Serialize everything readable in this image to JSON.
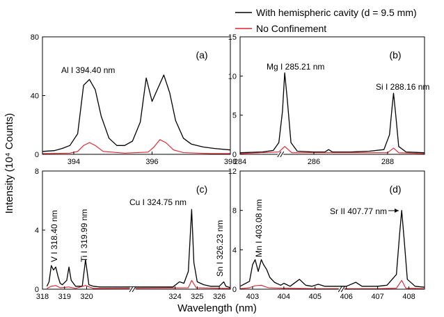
{
  "figure": {
    "ylabel": "Intensity (10⁴ Counts)",
    "xlabel": "Wavelength (nm)",
    "legend": [
      {
        "name": "With hemispheric cavity (d = 9.5 mm)",
        "color": "#000000"
      },
      {
        "name": "No Confinement",
        "color": "#e0202a"
      }
    ]
  },
  "chart_data": [
    {
      "type": "line",
      "panel": "(a)",
      "xlim": [
        393.2,
        398
      ],
      "ylim": [
        0,
        80
      ],
      "xticks": [
        394,
        396,
        398
      ],
      "yticks": [
        0,
        40,
        80
      ],
      "broken_x": false,
      "annotations": [
        {
          "text": "Al I 394.40 nm"
        }
      ],
      "series": [
        {
          "color": "#000000",
          "x": [
            393.2,
            393.5,
            393.7,
            393.9,
            394.1,
            394.25,
            394.4,
            394.55,
            394.7,
            394.9,
            395.1,
            395.3,
            395.5,
            395.7,
            395.85,
            396.0,
            396.15,
            396.3,
            396.45,
            396.6,
            396.8,
            397.0,
            397.3,
            397.6,
            398.0
          ],
          "y": [
            2,
            2.5,
            4,
            6,
            14,
            47,
            51,
            44,
            26,
            11,
            6,
            6,
            9,
            22,
            52,
            36,
            45,
            54,
            42,
            23,
            11,
            7,
            5,
            4,
            3
          ]
        },
        {
          "color": "#e0202a",
          "x": [
            393.2,
            393.9,
            394.1,
            394.25,
            394.4,
            394.55,
            394.75,
            395.3,
            395.9,
            396.05,
            396.2,
            396.35,
            396.55,
            396.8,
            397.5,
            398.0
          ],
          "y": [
            0.5,
            0.8,
            2,
            6,
            8,
            6,
            2,
            0.8,
            1.5,
            5,
            10,
            8,
            3,
            1.2,
            0.5,
            0.5
          ]
        }
      ]
    },
    {
      "type": "line",
      "panel": "(b)",
      "xlim": [
        284,
        289
      ],
      "ylim": [
        0,
        15
      ],
      "xticks": [
        284,
        286,
        288
      ],
      "yticks": [
        0,
        5,
        10,
        15
      ],
      "broken_x": true,
      "annotations": [
        {
          "text": "Mg I 285.21 nm"
        },
        {
          "text": "Si I 288.16 nm"
        }
      ],
      "series": [
        {
          "color": "#000000",
          "x": [
            284,
            284.6,
            284.9,
            285.05,
            285.15,
            285.21,
            285.28,
            285.38,
            285.55,
            286.0,
            286.3,
            286.4,
            286.5,
            287.0,
            287.5,
            287.9,
            288.05,
            288.12,
            288.16,
            288.22,
            288.3,
            288.5,
            289
          ],
          "y": [
            0.2,
            0.3,
            0.5,
            1.5,
            5.5,
            10.4,
            7,
            1.5,
            0.4,
            0.3,
            0.3,
            0.6,
            0.3,
            0.3,
            0.4,
            0.6,
            2.5,
            6,
            7.8,
            5,
            1,
            0.3,
            0.2
          ]
        },
        {
          "color": "#e0202a",
          "x": [
            284,
            285.05,
            285.21,
            285.4,
            288.0,
            288.16,
            288.3,
            289
          ],
          "y": [
            0.1,
            0.3,
            1.0,
            0.2,
            0.2,
            0.8,
            0.2,
            0.1
          ]
        }
      ]
    },
    {
      "type": "line",
      "panel": "(c)",
      "xlim": [
        318,
        326.5
      ],
      "ylim": [
        0,
        8
      ],
      "xticks": [
        318,
        319,
        320,
        324,
        325,
        326
      ],
      "yticks": [
        0,
        4,
        8
      ],
      "broken_x": true,
      "annotations": [
        {
          "text": "V I 318.40 nm"
        },
        {
          "text": "Ti I 319.99 nm"
        },
        {
          "text": "Cu I 324.75 nm"
        },
        {
          "text": "Sn I 326.23 nm"
        }
      ],
      "series": [
        {
          "color": "#000000",
          "x": [
            318.2,
            318.3,
            318.4,
            318.5,
            318.6,
            318.7,
            318.8,
            318.9,
            319.1,
            319.2,
            319.3,
            319.5,
            319.8,
            319.95,
            320.1,
            320.3,
            320.6,
            323.9,
            324.2,
            324.4,
            324.6,
            324.7,
            324.75,
            324.85,
            325.0,
            325.3,
            325.6,
            326.0,
            326.2,
            326.3,
            326.5
          ],
          "y": [
            0.2,
            0.5,
            1.6,
            1.3,
            1.5,
            0.9,
            0.4,
            0.3,
            0.6,
            1.5,
            0.6,
            0.2,
            0.2,
            2.0,
            0.3,
            0.2,
            0.15,
            0.15,
            0.5,
            0.4,
            1.2,
            4,
            5.4,
            1.8,
            0.5,
            0.3,
            0.2,
            0.2,
            0.5,
            0.2,
            0.1
          ]
        },
        {
          "color": "#e0202a",
          "x": [
            318.2,
            318.4,
            318.6,
            318.8,
            319.2,
            319.5,
            319.95,
            320.3,
            324.6,
            324.75,
            324.95,
            326.5
          ],
          "y": [
            0.05,
            0.2,
            0.25,
            0.1,
            0.15,
            0.05,
            0.25,
            0.05,
            0.1,
            0.6,
            0.1,
            0.05
          ]
        }
      ]
    },
    {
      "type": "line",
      "panel": "(d)",
      "xlim": [
        402.6,
        408.5
      ],
      "ylim": [
        0,
        12
      ],
      "xticks": [
        403,
        404,
        405,
        406,
        407,
        408
      ],
      "yticks": [
        0,
        4,
        8,
        12
      ],
      "broken_x": true,
      "annotations": [
        {
          "text": "Mn I 403.08 nm"
        },
        {
          "text": "Sr II 407.77 nm"
        }
      ],
      "series": [
        {
          "color": "#000000",
          "x": [
            402.6,
            402.9,
            403.0,
            403.08,
            403.18,
            403.28,
            403.35,
            403.45,
            403.55,
            403.7,
            403.9,
            404.0,
            404.2,
            404.5,
            404.7,
            404.9,
            405.1,
            405.3,
            405.5,
            405.8,
            406.0,
            406.3,
            406.5,
            406.7,
            407.0,
            407.3,
            407.6,
            407.7,
            407.77,
            407.85,
            407.95,
            408.2,
            408.5
          ],
          "y": [
            0.3,
            0.8,
            2.5,
            3,
            1.8,
            3,
            2.5,
            2,
            1.2,
            0.7,
            0.4,
            0.6,
            0.3,
            1,
            0.4,
            0.3,
            0.5,
            0.3,
            0.3,
            0.3,
            0.3,
            0.7,
            0.3,
            0.3,
            0.3,
            0.4,
            1.5,
            5.5,
            8,
            5,
            1,
            0.3,
            0.2
          ]
        },
        {
          "color": "#e0202a",
          "x": [
            402.6,
            402.9,
            403.08,
            403.28,
            403.5,
            404.0,
            405.0,
            406.0,
            407.0,
            407.6,
            407.77,
            407.9,
            408.5
          ],
          "y": [
            0.05,
            0.15,
            0.35,
            0.4,
            0.15,
            0.1,
            0.05,
            0.05,
            0.05,
            0.1,
            0.9,
            0.1,
            0.05
          ]
        }
      ]
    }
  ]
}
